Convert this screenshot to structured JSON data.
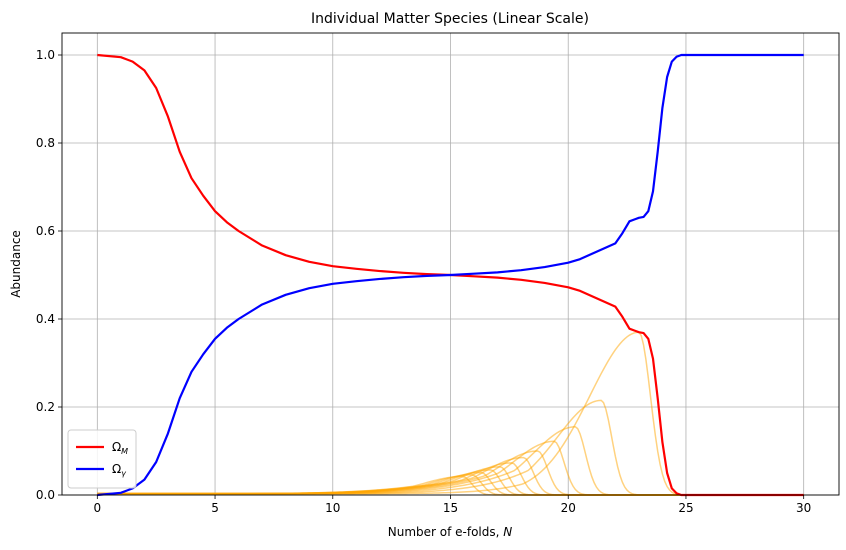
{
  "chart_data": {
    "type": "line",
    "title": "Individual Matter Species (Linear Scale)",
    "xlabel": "Number of e-folds, ",
    "xlabel_italic": "N",
    "ylabel": "Abundance",
    "xlim": [
      -1.5,
      31.5
    ],
    "ylim": [
      0.0,
      1.05
    ],
    "xticks": [
      0,
      5,
      10,
      15,
      20,
      25,
      30
    ],
    "xtick_labels": [
      "0",
      "5",
      "10",
      "15",
      "20",
      "25",
      "30"
    ],
    "yticks": [
      0.0,
      0.2,
      0.4,
      0.6,
      0.8,
      1.0
    ],
    "ytick_labels": [
      "0.0",
      "0.2",
      "0.4",
      "0.6",
      "0.8",
      "1.0"
    ],
    "grid": true,
    "legend_position": "lower-left",
    "series": [
      {
        "name": "Ω_M",
        "legend_main": "Ω",
        "legend_sub": "M",
        "color": "#ff0000",
        "x": [
          0,
          1,
          1.5,
          2,
          2.5,
          3,
          3.5,
          4,
          4.5,
          5,
          5.5,
          6,
          7,
          8,
          9,
          10,
          11,
          12,
          13,
          14,
          15,
          16,
          17,
          18,
          19,
          20,
          20.5,
          21,
          21.5,
          22,
          22.3,
          22.6,
          23,
          23.2,
          23.4,
          23.6,
          23.8,
          24,
          24.2,
          24.4,
          24.6,
          24.8,
          25,
          30
        ],
        "y": [
          1.0,
          0.995,
          0.985,
          0.965,
          0.925,
          0.86,
          0.78,
          0.72,
          0.68,
          0.645,
          0.62,
          0.6,
          0.567,
          0.545,
          0.53,
          0.52,
          0.514,
          0.509,
          0.505,
          0.502,
          0.5,
          0.497,
          0.494,
          0.489,
          0.482,
          0.472,
          0.464,
          0.452,
          0.44,
          0.428,
          0.405,
          0.378,
          0.37,
          0.368,
          0.355,
          0.31,
          0.22,
          0.12,
          0.05,
          0.015,
          0.004,
          0.0,
          0.0,
          0.0
        ]
      },
      {
        "name": "Ω_γ",
        "legend_main": "Ω",
        "legend_sub": "γ",
        "color": "#0000ff",
        "x": [
          0,
          1,
          1.5,
          2,
          2.5,
          3,
          3.5,
          4,
          4.5,
          5,
          5.5,
          6,
          7,
          8,
          9,
          10,
          11,
          12,
          13,
          14,
          15,
          16,
          17,
          18,
          19,
          20,
          20.5,
          21,
          21.5,
          22,
          22.3,
          22.6,
          23,
          23.2,
          23.4,
          23.6,
          23.8,
          24,
          24.2,
          24.4,
          24.6,
          24.8,
          25,
          30
        ],
        "y": [
          0.0,
          0.005,
          0.015,
          0.035,
          0.075,
          0.14,
          0.22,
          0.28,
          0.32,
          0.355,
          0.38,
          0.4,
          0.433,
          0.455,
          0.47,
          0.48,
          0.486,
          0.491,
          0.495,
          0.498,
          0.5,
          0.503,
          0.506,
          0.511,
          0.518,
          0.528,
          0.536,
          0.548,
          0.56,
          0.572,
          0.595,
          0.622,
          0.63,
          0.632,
          0.645,
          0.69,
          0.78,
          0.88,
          0.95,
          0.985,
          0.996,
          1.0,
          1.0,
          1.0
        ]
      }
    ],
    "species_color": "#ffa500",
    "species_peaks": [
      {
        "peak_x": 23.0,
        "peak_y": 0.37
      },
      {
        "peak_x": 21.4,
        "peak_y": 0.215
      },
      {
        "peak_x": 20.3,
        "peak_y": 0.155
      },
      {
        "peak_x": 19.4,
        "peak_y": 0.122
      },
      {
        "peak_x": 18.7,
        "peak_y": 0.1
      },
      {
        "peak_x": 18.1,
        "peak_y": 0.085
      },
      {
        "peak_x": 17.6,
        "peak_y": 0.073
      },
      {
        "peak_x": 17.1,
        "peak_y": 0.064
      },
      {
        "peak_x": 16.7,
        "peak_y": 0.057
      },
      {
        "peak_x": 16.3,
        "peak_y": 0.051
      },
      {
        "peak_x": 15.9,
        "peak_y": 0.046
      },
      {
        "peak_x": 15.5,
        "peak_y": 0.042
      }
    ]
  }
}
